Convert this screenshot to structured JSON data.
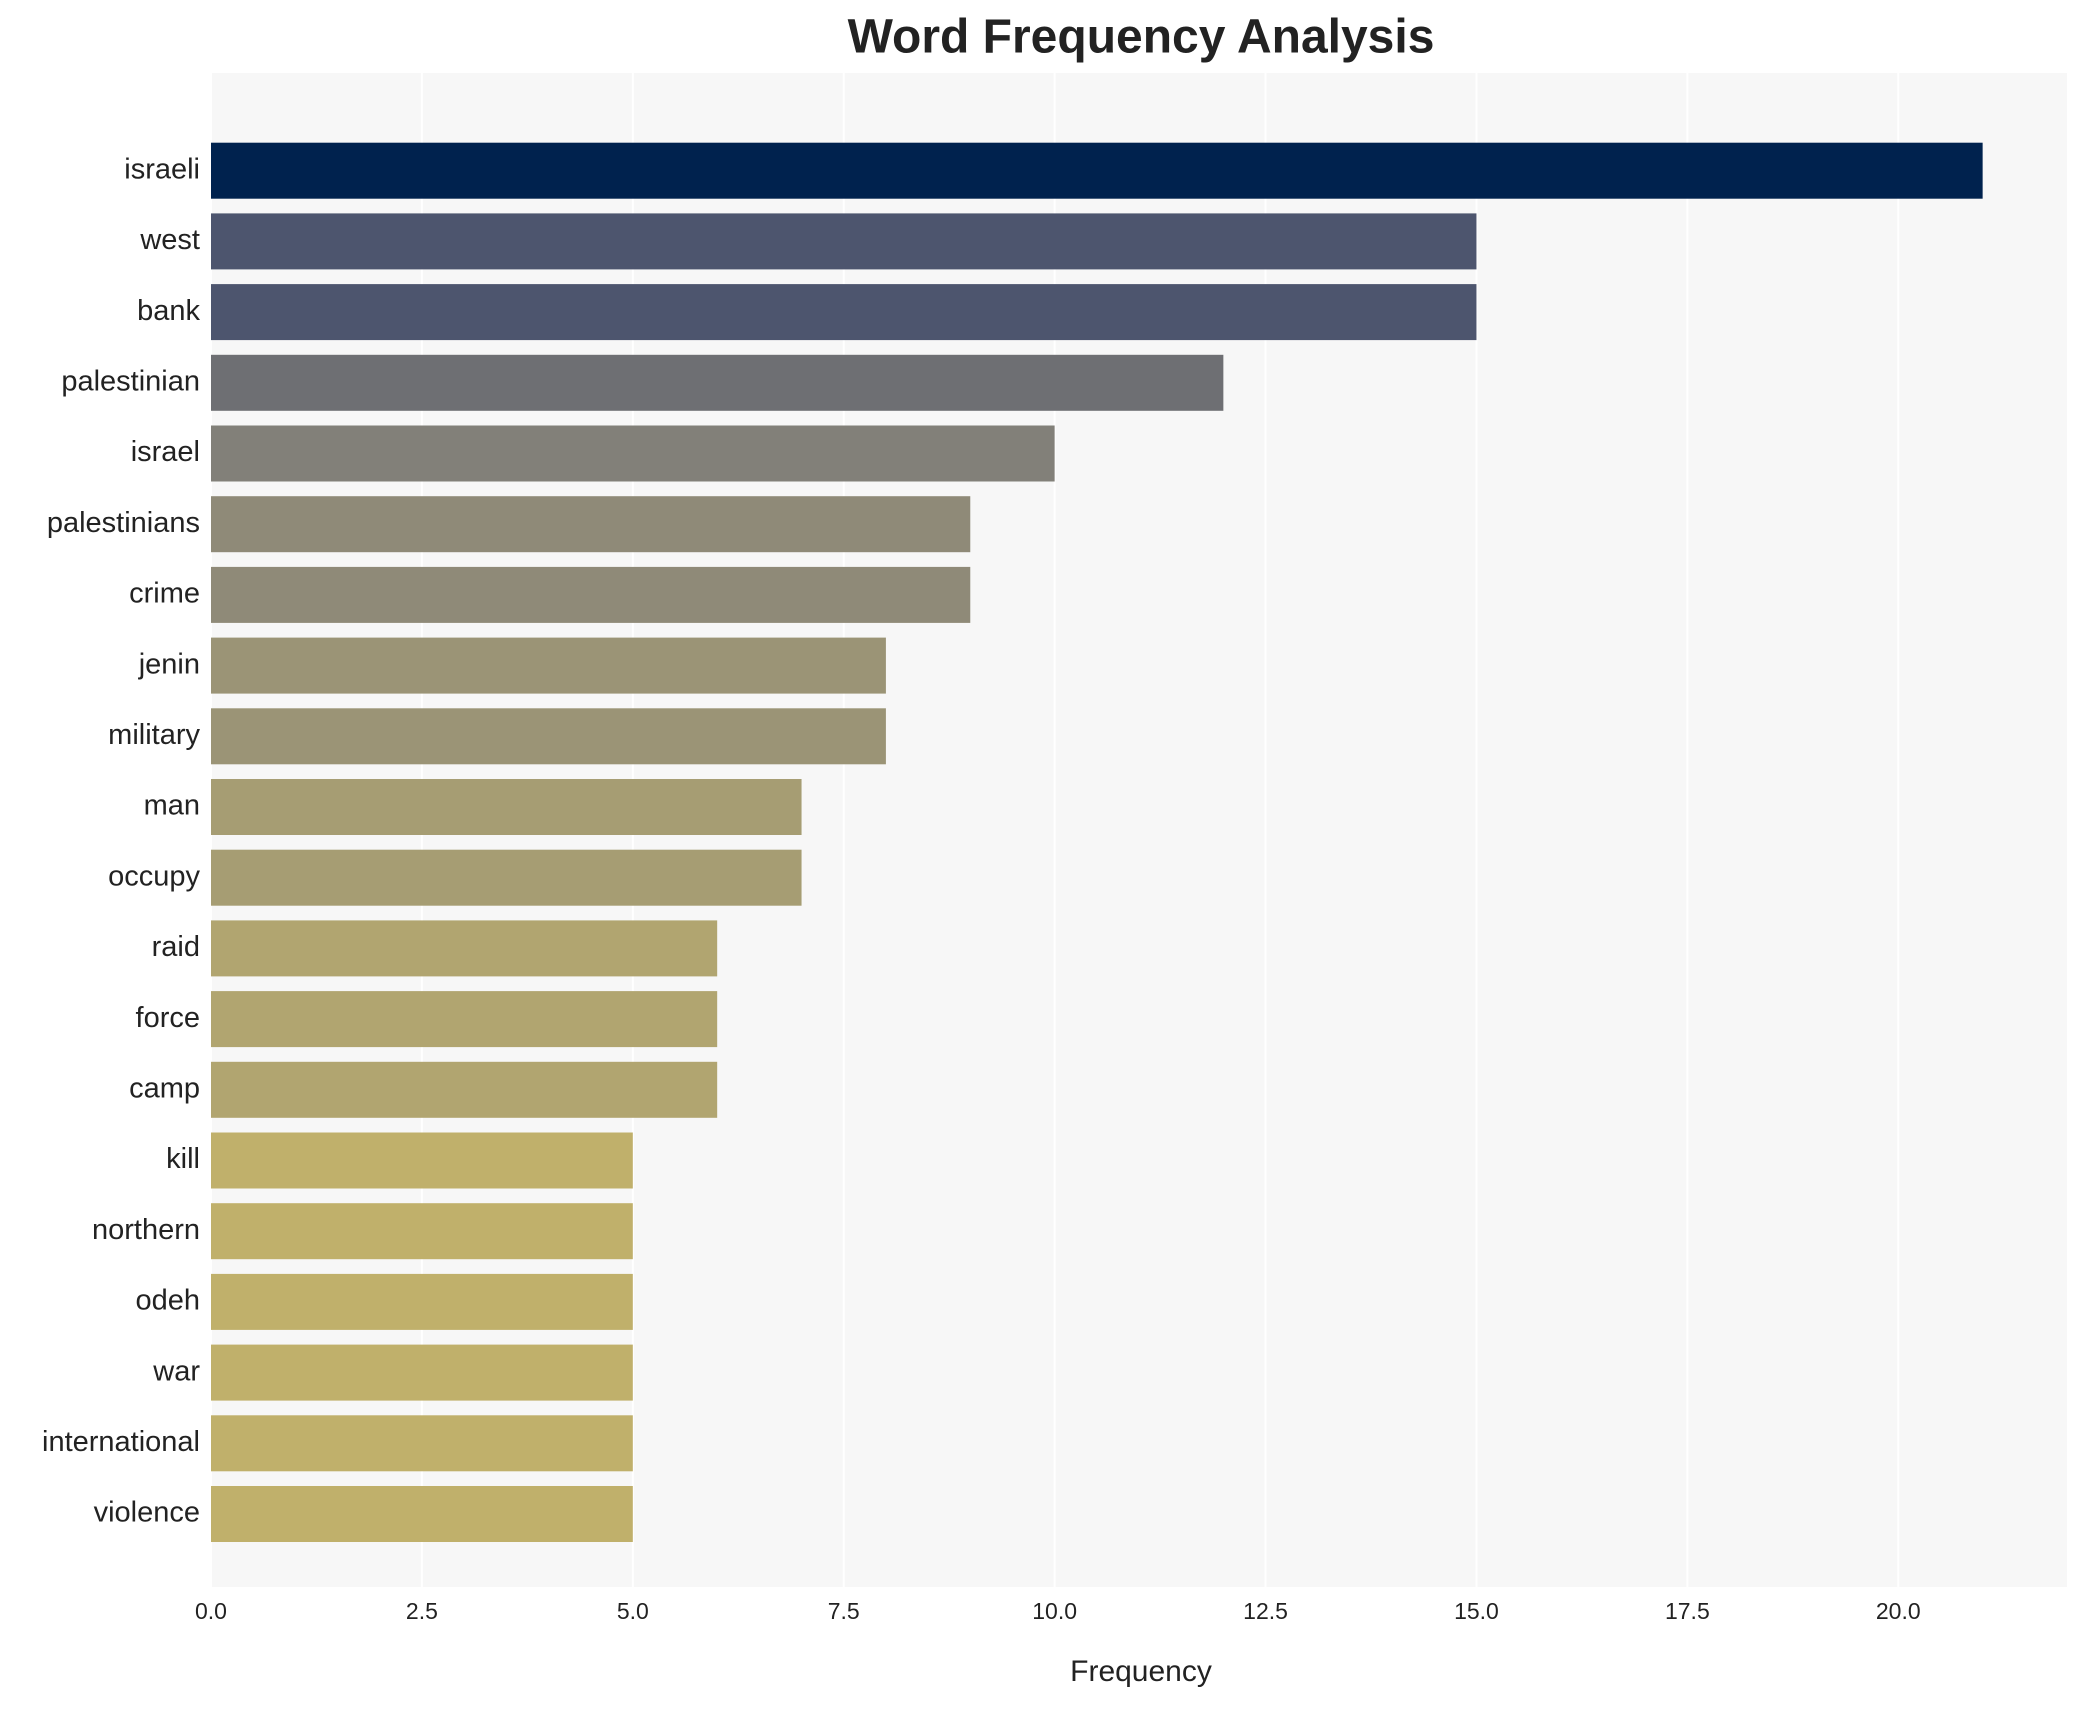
{
  "chart_data": {
    "type": "bar",
    "orientation": "horizontal",
    "title": "Word Frequency Analysis",
    "x_label": "Frequency",
    "categories": [
      "israeli",
      "west",
      "bank",
      "palestinian",
      "israel",
      "palestinians",
      "crime",
      "jenin",
      "military",
      "man",
      "occupy",
      "raid",
      "force",
      "camp",
      "kill",
      "northern",
      "odeh",
      "war",
      "international",
      "violence"
    ],
    "values": [
      21,
      15,
      15,
      12,
      10,
      9,
      9,
      8,
      8,
      7,
      7,
      6,
      6,
      6,
      5,
      5,
      5,
      5,
      5,
      5
    ],
    "colors": [
      "#00224e",
      "#4d556e",
      "#4d556e",
      "#6e6f73",
      "#828079",
      "#8f8a78",
      "#8f8a78",
      "#9b9476",
      "#9b9476",
      "#a69d73",
      "#a69d73",
      "#b1a570",
      "#b1a570",
      "#b1a570",
      "#c0b06b",
      "#c0b06b",
      "#c0b06b",
      "#c0b06b",
      "#c0b06b",
      "#c0b06b"
    ],
    "xlim": [
      0,
      22
    ],
    "xticks": [
      {
        "value": 0,
        "label": "0.0"
      },
      {
        "value": 2.5,
        "label": "2.5"
      },
      {
        "value": 5,
        "label": "5.0"
      },
      {
        "value": 7.5,
        "label": "7.5"
      },
      {
        "value": 10,
        "label": "10.0"
      },
      {
        "value": 12.5,
        "label": "12.5"
      },
      {
        "value": 15,
        "label": "15.0"
      },
      {
        "value": 17.5,
        "label": "17.5"
      },
      {
        "value": 20,
        "label": "20.0"
      }
    ],
    "grid": true
  }
}
